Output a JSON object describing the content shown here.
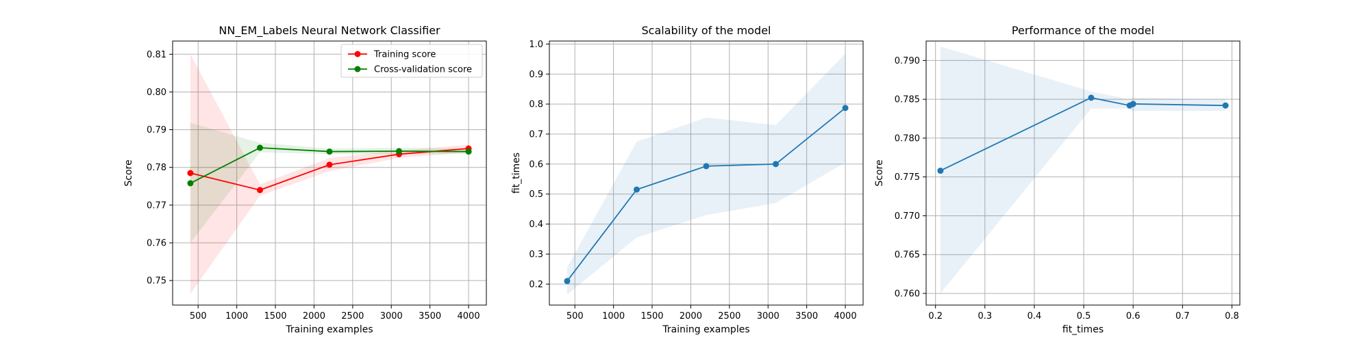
{
  "chart_data": [
    {
      "type": "line",
      "title": "NN_EM_Labels Neural Network Classifier",
      "xlabel": "Training examples",
      "ylabel": "Score",
      "xlim": [
        170,
        4230
      ],
      "ylim": [
        0.7435,
        0.8135
      ],
      "xticks": [
        500,
        1000,
        1500,
        2000,
        2500,
        3000,
        3500,
        4000
      ],
      "yticks": [
        0.75,
        0.76,
        0.77,
        0.78,
        0.79,
        0.8,
        0.81
      ],
      "ytick_decimals": 2,
      "grid": true,
      "legend_position": "top-right",
      "x": [
        400,
        1300,
        2200,
        3100,
        4000
      ],
      "series": [
        {
          "name": "Training score",
          "color": "#ff0000",
          "values": [
            0.7785,
            0.774,
            0.7807,
            0.7835,
            0.785
          ],
          "band_lower": [
            0.7465,
            0.7725,
            0.779,
            0.7825,
            0.784
          ],
          "band_upper": [
            0.81,
            0.7755,
            0.7825,
            0.7845,
            0.786
          ]
        },
        {
          "name": "Cross-validation score",
          "color": "#008000",
          "values": [
            0.7758,
            0.7852,
            0.7842,
            0.7843,
            0.7842
          ],
          "band_lower": [
            0.76,
            0.784,
            0.7835,
            0.7835,
            0.7835
          ],
          "band_upper": [
            0.7918,
            0.7865,
            0.785,
            0.7852,
            0.785
          ]
        }
      ]
    },
    {
      "type": "line",
      "title": "Scalability of the model",
      "xlabel": "Training examples",
      "ylabel": "fit_times",
      "xlim": [
        170,
        4230
      ],
      "ylim": [
        0.13,
        1.01
      ],
      "xticks": [
        500,
        1000,
        1500,
        2000,
        2500,
        3000,
        3500,
        4000
      ],
      "yticks": [
        0.2,
        0.3,
        0.4,
        0.5,
        0.6,
        0.7,
        0.8,
        0.9,
        1.0
      ],
      "ytick_decimals": 1,
      "grid": true,
      "x": [
        400,
        1300,
        2200,
        3100,
        4000
      ],
      "series": [
        {
          "color": "#1f77b4",
          "values": [
            0.21,
            0.515,
            0.593,
            0.6,
            0.787
          ],
          "band_lower": [
            0.165,
            0.355,
            0.43,
            0.47,
            0.605
          ],
          "band_upper": [
            0.255,
            0.675,
            0.755,
            0.73,
            0.968
          ]
        }
      ]
    },
    {
      "type": "line",
      "title": "Performance of the model",
      "xlabel": "fit_times",
      "ylabel": "Score",
      "xlim": [
        0.181,
        0.816
      ],
      "ylim": [
        0.7585,
        0.7925
      ],
      "xticks": [
        0.2,
        0.3,
        0.4,
        0.5,
        0.6,
        0.7,
        0.8
      ],
      "yticks": [
        0.76,
        0.765,
        0.77,
        0.775,
        0.78,
        0.785,
        0.79
      ],
      "xtick_decimals": 1,
      "ytick_decimals": 3,
      "grid": true,
      "x": [
        0.21,
        0.515,
        0.593,
        0.6,
        0.787
      ],
      "series": [
        {
          "color": "#1f77b4",
          "values": [
            0.7758,
            0.7852,
            0.7842,
            0.7844,
            0.7842
          ],
          "band_lower": [
            0.76,
            0.7838,
            0.7838,
            0.7835,
            0.7835
          ],
          "band_upper": [
            0.7918,
            0.786,
            0.785,
            0.7852,
            0.785
          ]
        }
      ]
    }
  ]
}
